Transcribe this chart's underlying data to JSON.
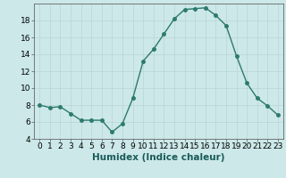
{
  "x": [
    0,
    1,
    2,
    3,
    4,
    5,
    6,
    7,
    8,
    9,
    10,
    11,
    12,
    13,
    14,
    15,
    16,
    17,
    18,
    19,
    20,
    21,
    22,
    23
  ],
  "y": [
    8.0,
    7.7,
    7.8,
    7.0,
    6.2,
    6.2,
    6.2,
    4.8,
    5.8,
    8.8,
    13.2,
    14.6,
    16.4,
    18.2,
    19.3,
    19.4,
    19.5,
    18.6,
    17.4,
    13.8,
    10.6,
    8.8,
    7.9,
    6.8
  ],
  "line_color": "#2d7a6e",
  "marker": "o",
  "marker_size": 2.5,
  "bg_color": "#cce8e8",
  "grid_color": "#b8d4d4",
  "xlabel": "Humidex (Indice chaleur)",
  "xlim": [
    -0.5,
    23.5
  ],
  "ylim": [
    4,
    20
  ],
  "yticks": [
    4,
    6,
    8,
    10,
    12,
    14,
    16,
    18
  ],
  "xticks": [
    0,
    1,
    2,
    3,
    4,
    5,
    6,
    7,
    8,
    9,
    10,
    11,
    12,
    13,
    14,
    15,
    16,
    17,
    18,
    19,
    20,
    21,
    22,
    23
  ],
  "xlabel_fontsize": 7.5,
  "tick_fontsize": 6.5,
  "linewidth": 1.0
}
